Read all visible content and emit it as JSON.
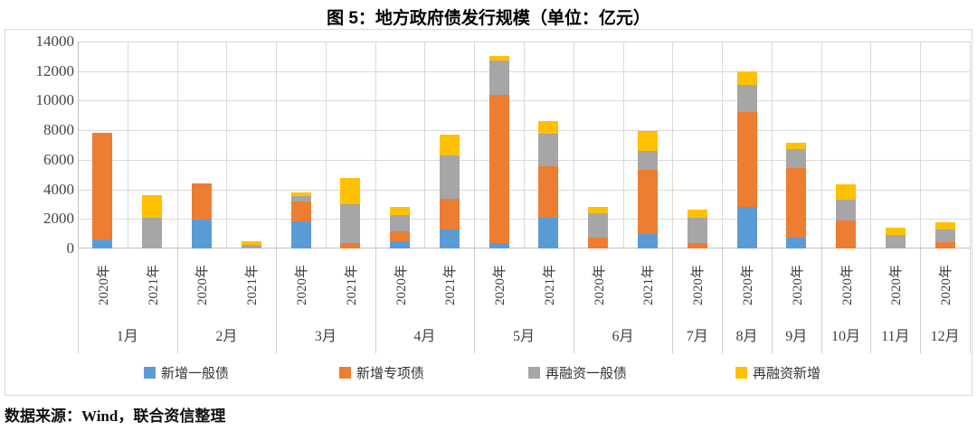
{
  "footer": {
    "source_text": "数据来源：Wind，联合资信整理"
  },
  "chart_data": {
    "type": "bar",
    "stacked": true,
    "title": "图 5：地方政府债发行规模（单位：亿元）",
    "unit": "亿元",
    "xlabel": "",
    "ylabel": "",
    "ylim": [
      0,
      14000
    ],
    "ytick_step": 2000,
    "yticks": [
      0,
      2000,
      4000,
      6000,
      8000,
      10000,
      12000,
      14000
    ],
    "grid": true,
    "legend_position": "bottom",
    "series_names": [
      "新增一般债",
      "新增专项债",
      "再融资一般债",
      "再融资新增"
    ],
    "series_colors": [
      "#5B9BD5",
      "#ED7D31",
      "#A6A6A6",
      "#FFC000"
    ],
    "groups": [
      {
        "month": "1月",
        "bars": [
          {
            "year": "2020年",
            "values": [
              600,
              7250,
              0,
              0
            ]
          },
          {
            "year": "2021年",
            "values": [
              0,
              0,
              2050,
              1550
            ]
          }
        ]
      },
      {
        "month": "2月",
        "bars": [
          {
            "year": "2020年",
            "values": [
              1950,
              2430,
              0,
              0
            ]
          },
          {
            "year": "2021年",
            "values": [
              0,
              0,
              250,
              250
            ]
          }
        ]
      },
      {
        "month": "3月",
        "bars": [
          {
            "year": "2020年",
            "values": [
              1840,
              1320,
              390,
              250
            ]
          },
          {
            "year": "2021年",
            "values": [
              0,
              350,
              2650,
              1750
            ]
          }
        ]
      },
      {
        "month": "4月",
        "bars": [
          {
            "year": "2020年",
            "values": [
              500,
              660,
              1120,
              520
            ]
          },
          {
            "year": "2021年",
            "values": [
              1270,
              2100,
              2930,
              1400
            ]
          }
        ]
      },
      {
        "month": "5月",
        "bars": [
          {
            "year": "2020年",
            "values": [
              350,
              10050,
              2330,
              300
            ]
          },
          {
            "year": "2021年",
            "values": [
              2080,
              3510,
              2160,
              900
            ]
          }
        ]
      },
      {
        "month": "6月",
        "bars": [
          {
            "year": "2020年",
            "values": [
              0,
              750,
              1640,
              430
            ]
          },
          {
            "year": "2021年",
            "values": [
              960,
              4340,
              1300,
              1350
            ]
          }
        ]
      },
      {
        "month": "7月",
        "bars": [
          {
            "year": "2020年",
            "values": [
              0,
              390,
              1690,
              550
            ]
          }
        ]
      },
      {
        "month": "8月",
        "bars": [
          {
            "year": "2020年",
            "values": [
              2800,
              6420,
              1840,
              920
            ]
          }
        ]
      },
      {
        "month": "9月",
        "bars": [
          {
            "year": "2020年",
            "values": [
              750,
              4700,
              1260,
              470
            ]
          }
        ]
      },
      {
        "month": "10月",
        "bars": [
          {
            "year": "2020年",
            "values": [
              0,
              1920,
              1380,
              1060
            ]
          }
        ]
      },
      {
        "month": "11月",
        "bars": [
          {
            "year": "2020年",
            "values": [
              0,
              0,
              900,
              510
            ]
          }
        ]
      },
      {
        "month": "12月",
        "bars": [
          {
            "year": "2020年",
            "values": [
              0,
              450,
              820,
              510
            ]
          }
        ]
      }
    ]
  }
}
